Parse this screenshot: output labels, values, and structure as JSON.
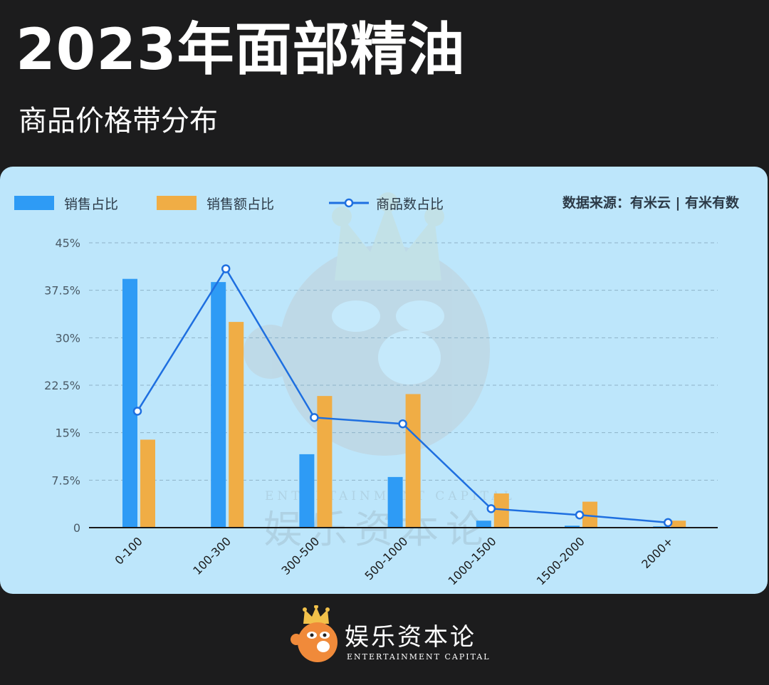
{
  "header": {
    "title": "2023年面部精油",
    "subtitle": "商品价格带分布"
  },
  "source": "数据来源：有米云 | 有米有数",
  "watermark": {
    "brand_cn": "娱乐资本论",
    "brand_en": "ENTERTAINMENT CAPITAL",
    "icon": "crowned-pufferfish-logo"
  },
  "footer": {
    "brand_cn": "娱乐资本论",
    "brand_en": "ENTERTAINMENT CAPITAL",
    "icon": "crowned-pufferfish-logo"
  },
  "colors": {
    "background": "#1c1c1d",
    "card": "#bde6fb",
    "sales_share": "#2e9bf5",
    "revenue_share": "#f0ad45",
    "product_share": "#1e6fe0"
  },
  "chart_data": {
    "type": "bar",
    "categories": [
      "0-100",
      "100-300",
      "300-500",
      "500-1000",
      "1000-1500",
      "1500-2000",
      "2000+"
    ],
    "series": [
      {
        "name": "销售占比",
        "type": "bar",
        "values": [
          39.3,
          38.8,
          11.6,
          8.0,
          1.1,
          0.3,
          0.2
        ]
      },
      {
        "name": "销售额占比",
        "type": "bar",
        "values": [
          13.9,
          32.5,
          20.8,
          21.1,
          5.4,
          4.1,
          1.1
        ]
      },
      {
        "name": "商品数占比",
        "type": "line",
        "values": [
          18.4,
          40.9,
          17.4,
          16.4,
          3.0,
          2.0,
          0.8
        ]
      }
    ],
    "ylim": [
      0,
      45
    ],
    "yticks": [
      "0",
      "7.5%",
      "15%",
      "22.5%",
      "30%",
      "37.5%",
      "45%"
    ],
    "ytick_values": [
      0,
      7.5,
      15,
      22.5,
      30,
      37.5,
      45
    ],
    "grid": true,
    "legend": "top-left"
  }
}
